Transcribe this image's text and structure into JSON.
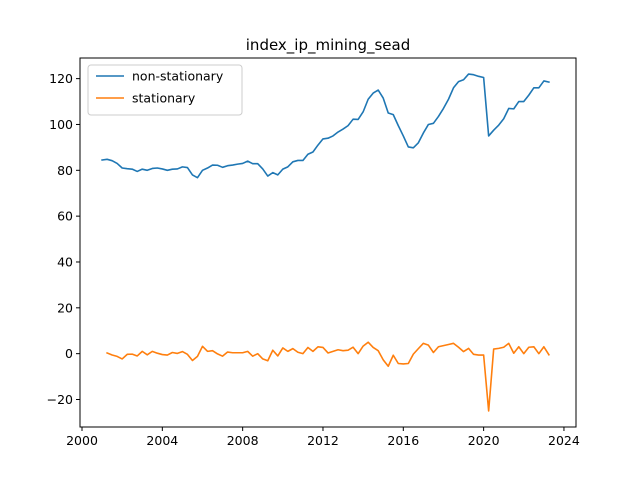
{
  "chart_data": {
    "type": "line",
    "title": "index_ip_mining_sead",
    "xlabel": "",
    "ylabel": "",
    "xlim": [
      1999.9,
      2024.6
    ],
    "ylim": [
      -32,
      129
    ],
    "xticks": [
      2000,
      2004,
      2008,
      2012,
      2016,
      2020,
      2024
    ],
    "xtick_labels": [
      "2000",
      "2004",
      "2008",
      "2012",
      "2016",
      "2020",
      "2024"
    ],
    "yticks": [
      -20,
      0,
      20,
      40,
      60,
      80,
      100,
      120
    ],
    "ytick_labels": [
      "−20",
      "0",
      "20",
      "40",
      "60",
      "80",
      "100",
      "120"
    ],
    "grid": false,
    "legend_position": "upper-left",
    "series": [
      {
        "name": "non-stationary",
        "color": "#1f77b4",
        "x": [
          2001.0,
          2001.25,
          2001.5,
          2001.75,
          2002.0,
          2002.25,
          2002.5,
          2002.75,
          2003.0,
          2003.25,
          2003.5,
          2003.75,
          2004.0,
          2004.25,
          2004.5,
          2004.75,
          2005.0,
          2005.25,
          2005.5,
          2005.75,
          2006.0,
          2006.25,
          2006.5,
          2006.75,
          2007.0,
          2007.25,
          2007.5,
          2007.75,
          2008.0,
          2008.25,
          2008.5,
          2008.75,
          2009.0,
          2009.25,
          2009.5,
          2009.75,
          2010.0,
          2010.25,
          2010.5,
          2010.75,
          2011.0,
          2011.25,
          2011.5,
          2011.75,
          2012.0,
          2012.25,
          2012.5,
          2012.75,
          2013.0,
          2013.25,
          2013.5,
          2013.75,
          2014.0,
          2014.25,
          2014.5,
          2014.75,
          2015.0,
          2015.25,
          2015.5,
          2015.75,
          2016.0,
          2016.25,
          2016.5,
          2016.75,
          2017.0,
          2017.25,
          2017.5,
          2017.75,
          2018.0,
          2018.25,
          2018.5,
          2018.75,
          2019.0,
          2019.25,
          2019.5,
          2019.75,
          2020.0,
          2020.25,
          2020.5,
          2020.75,
          2021.0,
          2021.25,
          2021.5,
          2021.75,
          2022.0,
          2022.25,
          2022.5,
          2022.75,
          2023.0,
          2023.25
        ],
        "y": [
          84.5,
          84.8,
          84.2,
          83.0,
          81.0,
          80.7,
          80.5,
          79.5,
          80.5,
          80.0,
          80.8,
          81.0,
          80.6,
          80.0,
          80.5,
          80.6,
          81.5,
          81.2,
          78.0,
          76.8,
          80.0,
          81.0,
          82.3,
          82.2,
          81.3,
          82.0,
          82.3,
          82.7,
          83.0,
          84.0,
          82.9,
          82.9,
          80.6,
          77.5,
          79.0,
          78.0,
          80.5,
          81.5,
          83.7,
          84.3,
          84.3,
          87.0,
          88.0,
          91.0,
          93.7,
          94.0,
          95.0,
          96.7,
          98.0,
          99.5,
          102.3,
          102.2,
          105.5,
          111.0,
          113.7,
          115.0,
          111.5,
          105.0,
          104.3,
          99.5,
          95.0,
          90.2,
          89.8,
          92.0,
          96.3,
          100.0,
          100.5,
          103.5,
          107.0,
          111.0,
          116.0,
          118.7,
          119.5,
          122.0,
          121.7,
          121.0,
          120.5,
          95.0,
          97.5,
          99.7,
          102.5,
          107.0,
          106.8,
          110.0,
          110.0,
          112.8,
          116.0,
          116.0,
          119.0,
          118.5
        ]
      },
      {
        "name": "stationary",
        "color": "#ff7f0e",
        "x": [
          2001.25,
          2001.5,
          2001.75,
          2002.0,
          2002.25,
          2002.5,
          2002.75,
          2003.0,
          2003.25,
          2003.5,
          2003.75,
          2004.0,
          2004.25,
          2004.5,
          2004.75,
          2005.0,
          2005.25,
          2005.5,
          2005.75,
          2006.0,
          2006.25,
          2006.5,
          2006.75,
          2007.0,
          2007.25,
          2007.5,
          2007.75,
          2008.0,
          2008.25,
          2008.5,
          2008.75,
          2009.0,
          2009.25,
          2009.5,
          2009.75,
          2010.0,
          2010.25,
          2010.5,
          2010.75,
          2011.0,
          2011.25,
          2011.5,
          2011.75,
          2012.0,
          2012.25,
          2012.5,
          2012.75,
          2013.0,
          2013.25,
          2013.5,
          2013.75,
          2014.0,
          2014.25,
          2014.5,
          2014.75,
          2015.0,
          2015.25,
          2015.5,
          2015.75,
          2016.0,
          2016.25,
          2016.5,
          2016.75,
          2017.0,
          2017.25,
          2017.5,
          2017.75,
          2018.0,
          2018.25,
          2018.5,
          2018.75,
          2019.0,
          2019.25,
          2019.5,
          2019.75,
          2020.0,
          2020.25,
          2020.5,
          2020.75,
          2021.0,
          2021.25,
          2021.5,
          2021.75,
          2022.0,
          2022.25,
          2022.5,
          2022.75,
          2023.0,
          2023.25
        ],
        "y": [
          0.3,
          -0.6,
          -1.2,
          -2.3,
          -0.3,
          -0.2,
          -1.0,
          1.0,
          -0.5,
          1.0,
          0.2,
          -0.4,
          -0.6,
          0.5,
          0.1,
          0.9,
          -0.3,
          -3.0,
          -1.2,
          3.2,
          1.0,
          1.3,
          -0.1,
          -1.1,
          0.7,
          0.4,
          0.4,
          0.4,
          1.0,
          -1.1,
          0.0,
          -2.3,
          -3.1,
          1.5,
          -1.0,
          2.5,
          1.0,
          2.2,
          0.6,
          0.0,
          2.7,
          1.0,
          3.0,
          2.7,
          0.3,
          1.0,
          1.7,
          1.3,
          1.5,
          2.8,
          0.0,
          3.3,
          5.0,
          2.7,
          1.3,
          -2.7,
          -5.5,
          -0.7,
          -4.3,
          -4.5,
          -4.3,
          -0.2,
          2.2,
          4.5,
          3.7,
          0.5,
          3.0,
          3.5,
          4.0,
          4.5,
          2.8,
          0.9,
          2.3,
          -0.3,
          -0.6,
          -0.6,
          -25.0,
          2.0,
          2.3,
          2.8,
          4.5,
          0.2,
          3.0,
          0.0,
          2.8,
          3.0,
          0.0,
          3.0,
          -0.5
        ]
      }
    ]
  }
}
